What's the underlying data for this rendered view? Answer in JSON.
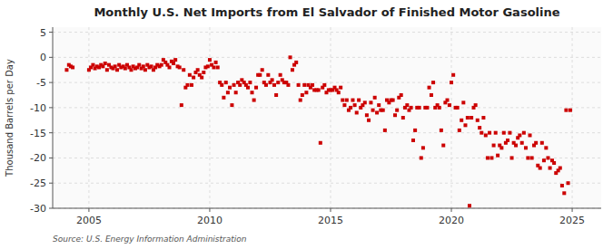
{
  "chart_data": {
    "type": "scatter",
    "title": "Monthly U.S. Net Imports from El Salvador of Finished Motor Gasoline",
    "ylabel": "Thousand Barrels per Day",
    "source": "Source: U.S. Energy Information Administration",
    "color": "#cc0000",
    "marker": "square",
    "grid": true,
    "xlim": [
      2003.5,
      2026.2
    ],
    "xticks": [
      2005,
      2010,
      2015,
      2020,
      2025
    ],
    "ylim": [
      -30,
      6
    ],
    "yticks": [
      -30,
      -25,
      -20,
      -15,
      -10,
      -5,
      0,
      5
    ],
    "x": [
      2004.08,
      2004.17,
      2004.25,
      2004.33,
      2005.0,
      2005.08,
      2005.17,
      2005.25,
      2005.33,
      2005.42,
      2005.5,
      2005.58,
      2005.67,
      2005.75,
      2005.83,
      2005.92,
      2006.0,
      2006.08,
      2006.17,
      2006.25,
      2006.33,
      2006.42,
      2006.5,
      2006.58,
      2006.67,
      2006.75,
      2006.83,
      2006.92,
      2007.0,
      2007.08,
      2007.17,
      2007.25,
      2007.33,
      2007.42,
      2007.5,
      2007.58,
      2007.67,
      2007.75,
      2007.83,
      2007.92,
      2008.0,
      2008.08,
      2008.17,
      2008.25,
      2008.33,
      2008.42,
      2008.5,
      2008.58,
      2008.67,
      2008.75,
      2008.83,
      2008.92,
      2009.0,
      2009.08,
      2009.17,
      2009.25,
      2009.33,
      2009.42,
      2009.5,
      2009.58,
      2009.67,
      2009.75,
      2009.83,
      2009.92,
      2010.0,
      2010.08,
      2010.17,
      2010.25,
      2010.33,
      2010.42,
      2010.5,
      2010.58,
      2010.67,
      2010.75,
      2010.83,
      2010.92,
      2011.0,
      2011.08,
      2011.17,
      2011.25,
      2011.33,
      2011.42,
      2011.5,
      2011.58,
      2011.67,
      2011.75,
      2011.83,
      2011.92,
      2012.0,
      2012.08,
      2012.17,
      2012.25,
      2012.33,
      2012.42,
      2012.5,
      2012.58,
      2012.67,
      2012.75,
      2012.83,
      2012.92,
      2013.0,
      2013.08,
      2013.17,
      2013.25,
      2013.33,
      2013.42,
      2013.5,
      2013.58,
      2013.67,
      2013.75,
      2013.83,
      2013.92,
      2014.0,
      2014.08,
      2014.17,
      2014.25,
      2014.33,
      2014.42,
      2014.5,
      2014.58,
      2014.67,
      2014.75,
      2014.83,
      2014.92,
      2015.0,
      2015.08,
      2015.17,
      2015.25,
      2015.33,
      2015.42,
      2015.5,
      2015.58,
      2015.67,
      2015.75,
      2015.83,
      2015.92,
      2016.0,
      2016.08,
      2016.17,
      2016.25,
      2016.33,
      2016.42,
      2016.5,
      2016.58,
      2016.67,
      2016.75,
      2016.83,
      2016.92,
      2017.0,
      2017.08,
      2017.17,
      2017.25,
      2017.33,
      2017.42,
      2017.5,
      2017.58,
      2017.67,
      2017.75,
      2017.83,
      2017.92,
      2018.0,
      2018.08,
      2018.17,
      2018.25,
      2018.33,
      2018.42,
      2018.5,
      2018.58,
      2018.67,
      2018.75,
      2018.83,
      2018.92,
      2019.0,
      2019.08,
      2019.17,
      2019.25,
      2019.33,
      2019.42,
      2019.5,
      2019.58,
      2019.67,
      2019.75,
      2019.83,
      2019.92,
      2020.0,
      2020.08,
      2020.17,
      2020.25,
      2020.33,
      2020.42,
      2020.5,
      2020.58,
      2020.67,
      2020.75,
      2020.83,
      2020.92,
      2021.0,
      2021.08,
      2021.17,
      2021.25,
      2021.33,
      2021.42,
      2021.5,
      2021.58,
      2021.67,
      2021.75,
      2021.83,
      2021.92,
      2022.0,
      2022.08,
      2022.17,
      2022.25,
      2022.33,
      2022.42,
      2022.5,
      2022.58,
      2022.67,
      2022.75,
      2022.83,
      2022.92,
      2023.0,
      2023.08,
      2023.17,
      2023.25,
      2023.33,
      2023.42,
      2023.5,
      2023.58,
      2023.67,
      2023.75,
      2023.83,
      2023.92,
      2024.0,
      2024.08,
      2024.17,
      2024.25,
      2024.33,
      2024.42,
      2024.5,
      2024.58,
      2024.67,
      2024.75,
      2024.83,
      2024.92
    ],
    "values": [
      -2.5,
      -1.5,
      -1.8,
      -2.0,
      -2.5,
      -2.0,
      -1.5,
      -2.2,
      -1.8,
      -2.0,
      -1.5,
      -1.8,
      -1.2,
      -2.5,
      -1.5,
      -2.0,
      -2.2,
      -1.8,
      -2.5,
      -1.5,
      -2.0,
      -1.8,
      -2.2,
      -1.5,
      -2.0,
      -2.5,
      -1.8,
      -2.2,
      -2.0,
      -1.5,
      -2.2,
      -1.8,
      -2.5,
      -1.5,
      -2.0,
      -1.8,
      -2.5,
      -2.0,
      -1.5,
      -1.8,
      -1.5,
      -0.5,
      -1.0,
      -1.5,
      -2.0,
      -0.8,
      -1.2,
      -0.5,
      -1.8,
      -2.0,
      -9.5,
      -2.5,
      -6.0,
      -5.5,
      -3.5,
      -5.5,
      -4.0,
      -3.0,
      -2.5,
      -3.5,
      -4.0,
      -3.0,
      -2.0,
      -1.8,
      -0.5,
      -1.5,
      -2.0,
      -1.0,
      -2.0,
      -5.0,
      -5.5,
      -8.0,
      -5.0,
      -7.0,
      -6.0,
      -9.5,
      -5.5,
      -7.0,
      -5.0,
      -5.5,
      -4.5,
      -5.0,
      -5.5,
      -6.0,
      -5.0,
      -7.0,
      -8.5,
      -6.0,
      -3.5,
      -3.5,
      -2.5,
      -5.0,
      -5.5,
      -3.5,
      -5.0,
      -4.5,
      -5.5,
      -7.5,
      -5.0,
      -3.5,
      -4.5,
      -5.0,
      -5.0,
      -5.5,
      0.0,
      -2.5,
      -1.5,
      -1.0,
      -5.5,
      -8.5,
      -7.5,
      -5.5,
      -7.0,
      -5.5,
      -6.0,
      -5.5,
      -6.5,
      -6.5,
      -6.5,
      -17.0,
      -6.0,
      -5.5,
      -7.0,
      -6.5,
      -6.5,
      -6.5,
      -6.0,
      -6.5,
      -7.0,
      -6.0,
      -8.5,
      -9.5,
      -8.5,
      -10.5,
      -10.0,
      -8.5,
      -9.5,
      -11.0,
      -8.5,
      -10.0,
      -9.5,
      -9.0,
      -11.5,
      -12.5,
      -9.0,
      -10.5,
      -8.0,
      -11.0,
      -9.5,
      -10.5,
      -10.5,
      -14.5,
      -8.5,
      -9.0,
      -8.5,
      -8.5,
      -11.5,
      -10.5,
      -8.0,
      -7.5,
      -12.0,
      -10.0,
      -9.5,
      -10.5,
      -10.0,
      -16.5,
      -14.5,
      -10.0,
      -10.0,
      -20.0,
      -18.0,
      -10.0,
      -10.0,
      -6.0,
      -7.5,
      -5.0,
      -10.0,
      -9.5,
      -10.0,
      -14.5,
      -17.5,
      -9.0,
      -8.5,
      -9.5,
      -5.0,
      -3.5,
      -10.0,
      -10.0,
      -14.5,
      -12.5,
      -9.0,
      -13.5,
      -12.0,
      -29.5,
      -12.0,
      -10.0,
      -9.5,
      -12.5,
      -14.0,
      -15.0,
      -12.0,
      -15.5,
      -20.0,
      -15.0,
      -20.0,
      -17.5,
      -15.0,
      -19.5,
      -17.5,
      -18.0,
      -15.0,
      -17.0,
      -16.5,
      -15.0,
      -20.0,
      -17.0,
      -17.5,
      -16.0,
      -15.5,
      -17.0,
      -15.0,
      -18.0,
      -20.0,
      -15.5,
      -20.0,
      -17.5,
      -17.0,
      -21.5,
      -22.0,
      -17.0,
      -20.5,
      -18.0,
      -20.0,
      -22.0,
      -20.5,
      -21.0,
      -23.0,
      -22.5,
      -22.0,
      -25.5,
      -27.0,
      -10.5,
      -25.0,
      -10.5
    ]
  }
}
